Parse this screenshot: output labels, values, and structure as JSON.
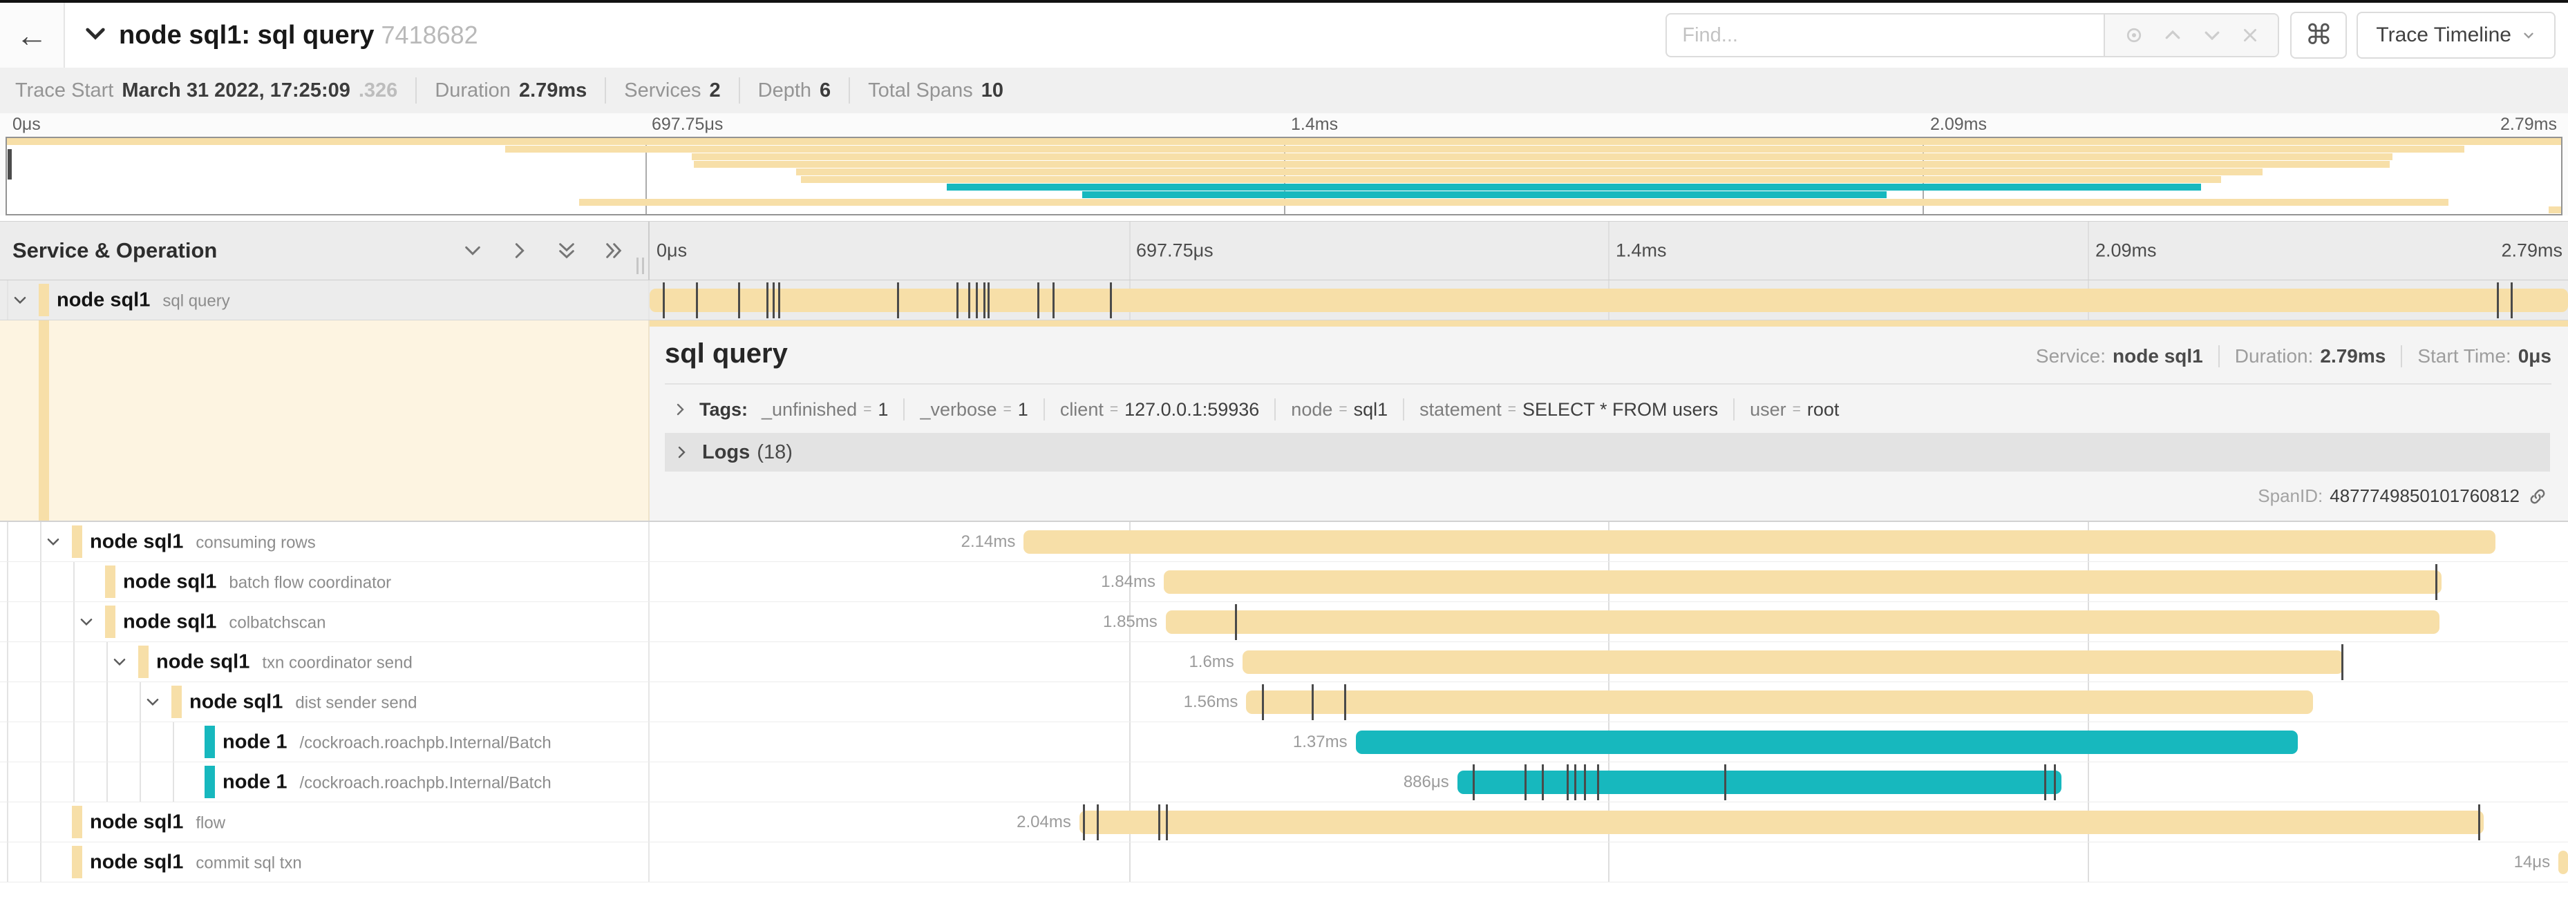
{
  "colors": {
    "tan": "#f7dfa8",
    "teal": "#17b8be",
    "detail_bg_left": "#fdf4e1",
    "selected_row": "#ececec",
    "tick": "#4a4a4a"
  },
  "titlebar": {
    "back_icon": "←",
    "title": "node sql1: sql query",
    "trace_id": "7418682",
    "find_placeholder": "Find...",
    "shortcut_icon": "⌘",
    "view_selector_label": "Trace Timeline"
  },
  "stats": {
    "items": [
      {
        "label": "Trace Start",
        "value": "March 31 2022, 17:25:09",
        "muted_suffix": ".326"
      },
      {
        "label": "Duration",
        "value": "2.79ms",
        "muted_suffix": ""
      },
      {
        "label": "Services",
        "value": "2",
        "muted_suffix": ""
      },
      {
        "label": "Depth",
        "value": "6",
        "muted_suffix": ""
      },
      {
        "label": "Total Spans",
        "value": "10",
        "muted_suffix": ""
      }
    ]
  },
  "timeline": {
    "ticks": [
      "0μs",
      "697.75μs",
      "1.4ms",
      "2.09ms",
      "2.79ms"
    ],
    "tick_positions_pct": [
      0,
      25,
      50,
      75,
      100
    ]
  },
  "left_header": {
    "title": "Service & Operation"
  },
  "detail_panel": {
    "title": "sql query",
    "service_label": "Service:",
    "service": "node sql1",
    "duration_label": "Duration:",
    "duration": "2.79ms",
    "start_label": "Start Time:",
    "start": "0μs",
    "tags_label": "Tags:",
    "tags": [
      {
        "key": "_unfinished",
        "value": "1"
      },
      {
        "key": "_verbose",
        "value": "1"
      },
      {
        "key": "client",
        "value": "127.0.0.1:59936"
      },
      {
        "key": "node",
        "value": "sql1"
      },
      {
        "key": "statement",
        "value": "SELECT * FROM users"
      },
      {
        "key": "user",
        "value": "root"
      }
    ],
    "logs_label": "Logs",
    "logs_count": "(18)",
    "span_id_label": "SpanID:",
    "span_id": "4877749850101760812"
  },
  "spans": [
    {
      "service": "node sql1",
      "operation": "sql query",
      "depth": 0,
      "color": "tan",
      "expander": true,
      "selected": true,
      "start_pct": 0,
      "end_pct": 100,
      "duration_label": "",
      "ticks_pct": [
        0.7,
        2.4,
        4.6,
        6.1,
        6.4,
        6.7,
        12.9,
        16,
        16.6,
        17,
        17.4,
        17.6,
        20.2,
        21,
        24,
        96.3,
        97
      ]
    },
    {
      "service": "node sql1",
      "operation": "consuming rows",
      "depth": 1,
      "color": "tan",
      "expander": true,
      "selected": false,
      "start_pct": 19.5,
      "end_pct": 96.2,
      "duration_label": "2.14ms",
      "ticks_pct": []
    },
    {
      "service": "node sql1",
      "operation": "batch flow coordinator",
      "depth": 2,
      "color": "tan",
      "expander": false,
      "selected": false,
      "start_pct": 26.8,
      "end_pct": 93.4,
      "duration_label": "1.84ms",
      "ticks_pct": [
        93.1
      ]
    },
    {
      "service": "node sql1",
      "operation": "colbatchscan",
      "depth": 2,
      "color": "tan",
      "expander": true,
      "selected": false,
      "start_pct": 26.9,
      "end_pct": 93.3,
      "duration_label": "1.85ms",
      "ticks_pct": [
        30.5
      ]
    },
    {
      "service": "node sql1",
      "operation": "txn coordinator send",
      "depth": 3,
      "color": "tan",
      "expander": true,
      "selected": false,
      "start_pct": 30.9,
      "end_pct": 88.3,
      "duration_label": "1.6ms",
      "ticks_pct": [
        88.2
      ]
    },
    {
      "service": "node sql1",
      "operation": "dist sender send",
      "depth": 4,
      "color": "tan",
      "expander": true,
      "selected": false,
      "start_pct": 31.1,
      "end_pct": 86.7,
      "duration_label": "1.56ms",
      "ticks_pct": [
        31.9,
        34.5,
        36.2
      ]
    },
    {
      "service": "node 1",
      "operation": "/cockroach.roachpb.Internal/Batch",
      "depth": 5,
      "color": "teal",
      "expander": false,
      "selected": false,
      "start_pct": 36.8,
      "end_pct": 85.9,
      "duration_label": "1.37ms",
      "ticks_pct": []
    },
    {
      "service": "node 1",
      "operation": "/cockroach.roachpb.Internal/Batch",
      "depth": 5,
      "color": "teal",
      "expander": false,
      "selected": false,
      "start_pct": 42.1,
      "end_pct": 73.6,
      "duration_label": "886μs",
      "ticks_pct": [
        42.9,
        45.6,
        46.5,
        47.8,
        48.2,
        48.7,
        49.4,
        56,
        72.7,
        73.2
      ]
    },
    {
      "service": "node sql1",
      "operation": "flow",
      "depth": 1,
      "color": "tan",
      "expander": false,
      "selected": false,
      "start_pct": 22.4,
      "end_pct": 95.6,
      "duration_label": "2.04ms",
      "ticks_pct": [
        22.6,
        23.3,
        26.5,
        26.9,
        95.3
      ]
    },
    {
      "service": "node sql1",
      "operation": "commit sql txn",
      "depth": 1,
      "color": "tan",
      "expander": false,
      "selected": false,
      "start_pct": 99.5,
      "end_pct": 100,
      "duration_label": "14μs",
      "ticks_pct": []
    }
  ]
}
